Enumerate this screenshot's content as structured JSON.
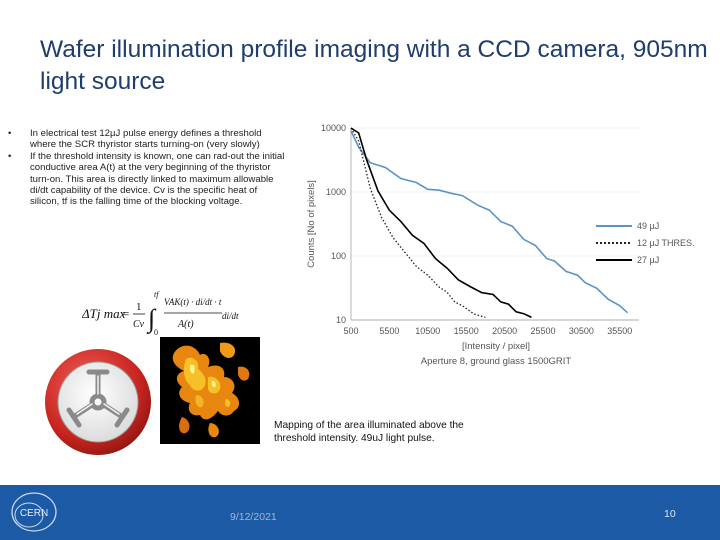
{
  "slide": {
    "title": "Wafer illumination profile imaging with a CCD camera, 905nm light source",
    "bullets": [
      "In electrical test 12µJ pulse energy defines a threshold where the SCR thyristor starts turning-on (very slowly)",
      "If the threshold intensity is known, one can rad-out the initial conductive area A(t) at the very beginning of the thyristor turn-on. This area is directly linked to maximum allowable di/dt capability of the device. Cv is the specific heat of silicon, tf is the falling time of the blocking voltage."
    ],
    "bullet_marker": "•",
    "caption": "Mapping of the area illuminated above the threshold intensity. 49uJ light pulse.",
    "date": "9/12/2021",
    "page_number": "10"
  },
  "formula": {
    "lhs": "ΔTj max",
    "equals": "=",
    "frac_num": "1",
    "frac_den": "Cv",
    "int_upper": "tf",
    "int_lower": "0",
    "integrand_top": "VAK(t) · di/dt · t",
    "integrand_bottom": "A(t)",
    "differential": "di/dt"
  },
  "logo": {
    "icon": "crossed-circle-logo-icon"
  },
  "footer_logo": {
    "text": "CERN",
    "icon": "cern-logo-icon"
  },
  "colors": {
    "title": "#1f3d6d",
    "footer": "#1c5aa5",
    "series_49": "#5b93c6",
    "series_12": "#222222",
    "series_27": "#000000"
  },
  "chart_data": {
    "type": "line",
    "xlabel": "[Intensity / pixel]",
    "ylabel": "Counts [No of pixels]",
    "subtitle": "Aperture 8, ground glass 1500GRIT",
    "y_scale": "log",
    "ylim": [
      10,
      10000
    ],
    "xlim": [
      500,
      38000
    ],
    "x_ticks": [
      "500",
      "5500",
      "10500",
      "15500",
      "20500",
      "25500",
      "30500",
      "35500"
    ],
    "y_ticks": [
      "10000",
      "1000",
      "100",
      "10"
    ],
    "legend_position": "right",
    "series": [
      {
        "name": "49 µJ",
        "style": "solid",
        "color": "#5b93c6",
        "points": [
          [
            500,
            9000
          ],
          [
            1500,
            4800
          ],
          [
            3000,
            3000
          ],
          [
            5000,
            2300
          ],
          [
            7000,
            1700
          ],
          [
            9000,
            1350
          ],
          [
            10500,
            1150
          ],
          [
            12000,
            1020
          ],
          [
            13500,
            1000
          ],
          [
            15000,
            840
          ],
          [
            17000,
            650
          ],
          [
            18500,
            500
          ],
          [
            20000,
            360
          ],
          [
            21500,
            280
          ],
          [
            23000,
            190
          ],
          [
            24500,
            140
          ],
          [
            26000,
            95
          ],
          [
            27000,
            80
          ],
          [
            28500,
            60
          ],
          [
            30000,
            48
          ],
          [
            31000,
            40
          ],
          [
            32500,
            30
          ],
          [
            34000,
            22
          ],
          [
            35500,
            16
          ],
          [
            36500,
            13
          ]
        ]
      },
      {
        "name": "12 µJ THRES.",
        "style": "dotted",
        "color": "#222222",
        "points": [
          [
            500,
            10000
          ],
          [
            1500,
            6000
          ],
          [
            3000,
            1200
          ],
          [
            4500,
            380
          ],
          [
            6000,
            200
          ],
          [
            7500,
            110
          ],
          [
            9000,
            72
          ],
          [
            10500,
            48
          ],
          [
            12000,
            34
          ],
          [
            13000,
            26
          ],
          [
            14000,
            20
          ],
          [
            15000,
            16
          ],
          [
            16500,
            13
          ],
          [
            18000,
            11
          ]
        ]
      },
      {
        "name": "27 µJ",
        "style": "solid",
        "color": "#000000",
        "points": [
          [
            500,
            10000
          ],
          [
            1500,
            8000
          ],
          [
            2500,
            3400
          ],
          [
            4000,
            1000
          ],
          [
            5500,
            540
          ],
          [
            7000,
            330
          ],
          [
            8500,
            220
          ],
          [
            10000,
            150
          ],
          [
            11500,
            95
          ],
          [
            13000,
            62
          ],
          [
            14500,
            44
          ],
          [
            16000,
            32
          ],
          [
            17500,
            28
          ],
          [
            19000,
            24
          ],
          [
            20000,
            20
          ],
          [
            21000,
            17
          ],
          [
            22000,
            14
          ],
          [
            23000,
            12
          ],
          [
            24000,
            11
          ]
        ]
      }
    ]
  }
}
